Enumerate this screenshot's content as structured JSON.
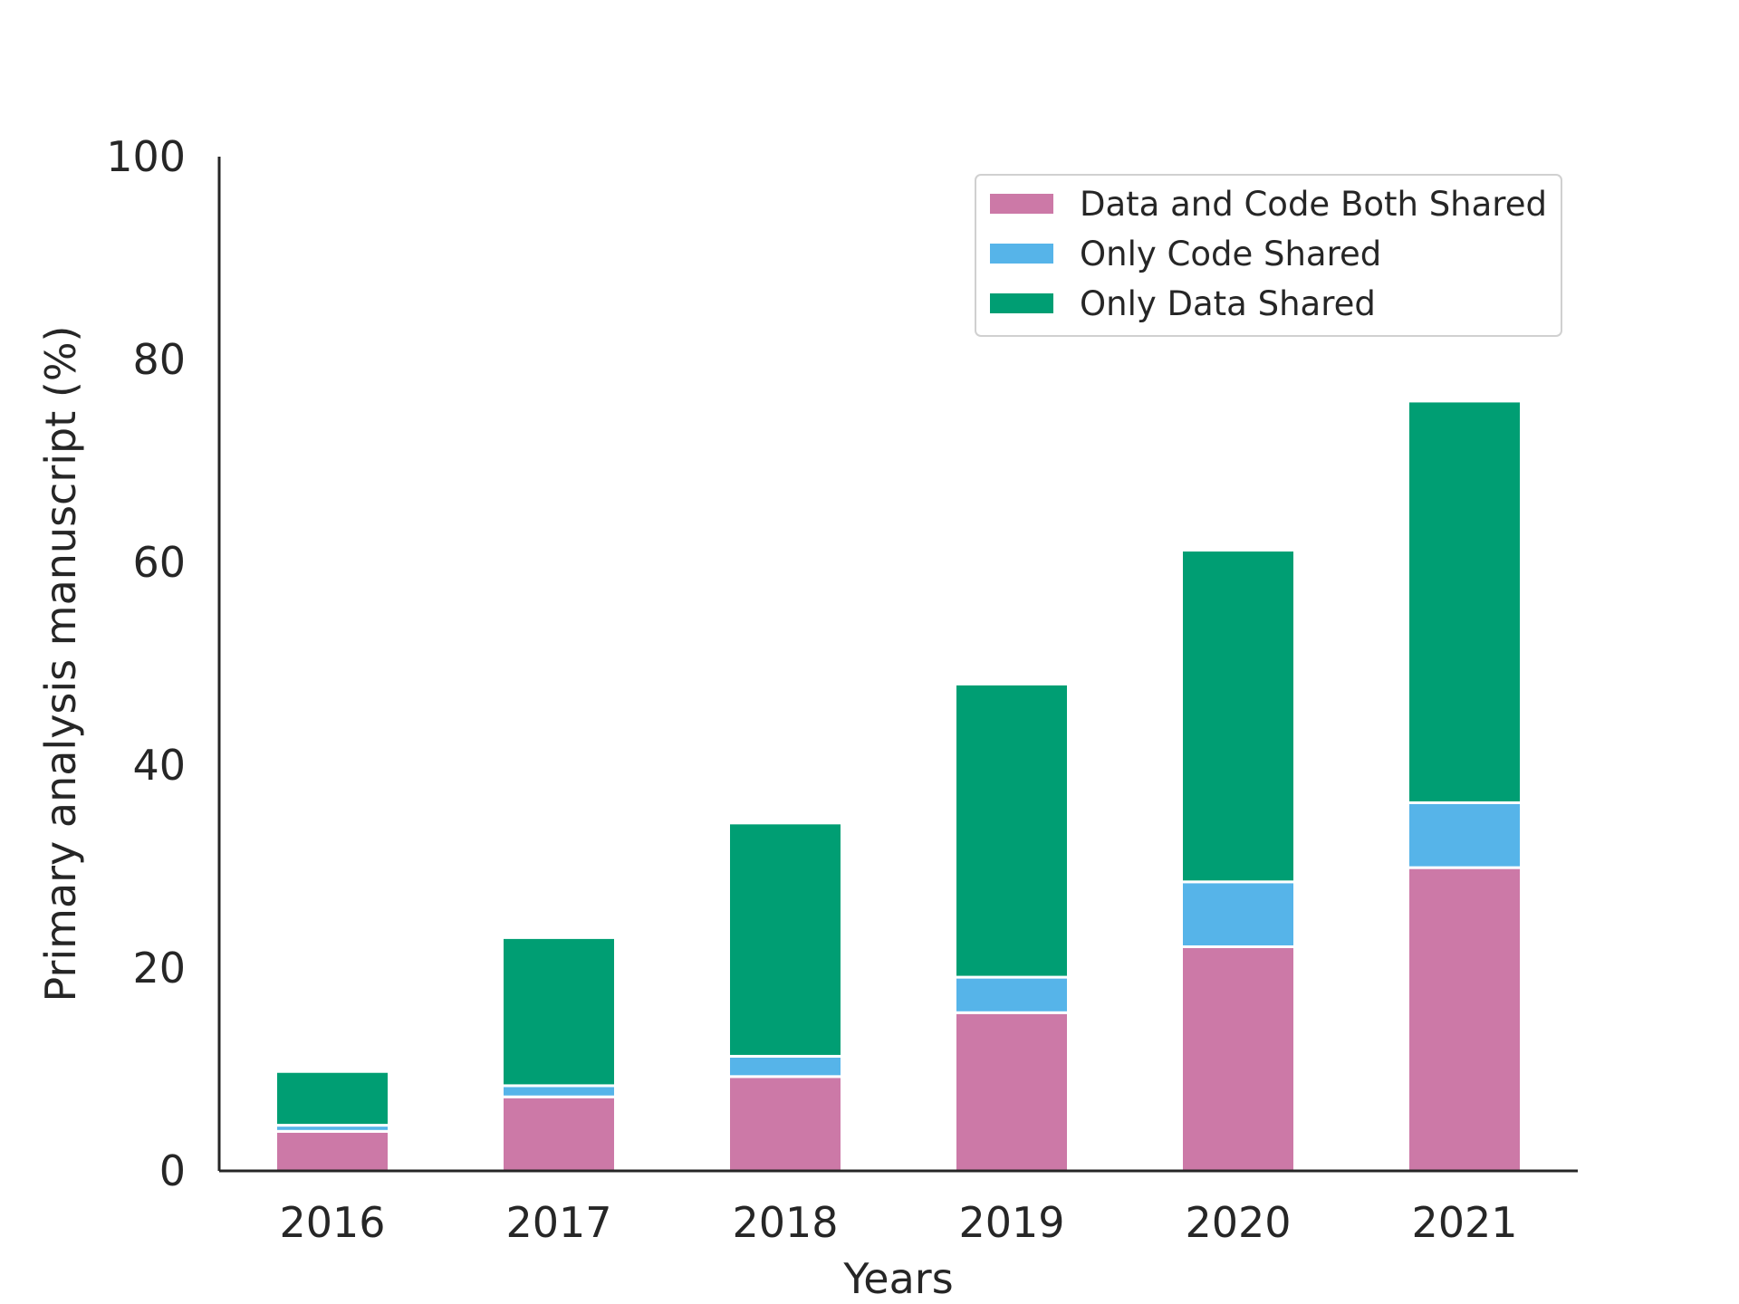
{
  "chart_data": {
    "type": "bar",
    "stacked": true,
    "categories": [
      "2016",
      "2017",
      "2018",
      "2019",
      "2020",
      "2021"
    ],
    "series": [
      {
        "name": "Data and Code Both Shared",
        "color": "#cc79a7",
        "values": [
          3.9,
          7.3,
          9.3,
          15.6,
          22.1,
          29.9
        ]
      },
      {
        "name": "Only Code Shared",
        "color": "#56b4e9",
        "values": [
          0.6,
          1.1,
          2.0,
          3.5,
          6.4,
          6.4
        ]
      },
      {
        "name": "Only Data Shared",
        "color": "#009e73",
        "values": [
          5.3,
          14.6,
          23.0,
          28.9,
          32.7,
          39.6
        ]
      }
    ],
    "xlabel": "Years",
    "ylabel": "Primary analysis manuscript  (%)",
    "ylim": [
      0,
      100
    ],
    "yticks": [
      "0",
      "20",
      "40",
      "60",
      "80",
      "100"
    ],
    "grid": false,
    "legend_position": "top-right"
  }
}
